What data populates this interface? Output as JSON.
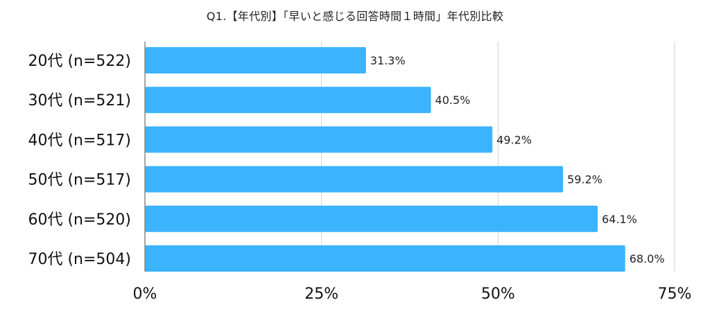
{
  "chart_data": {
    "type": "bar",
    "orientation": "horizontal",
    "title": "Q1.【年代別】「早いと感じる回答時間１時間」年代別比較",
    "categories": [
      "20代 (n=522)",
      "30代 (n=521)",
      "40代 (n=517)",
      "50代 (n=517)",
      "60代 (n=520)",
      "70代 (n=504)"
    ],
    "values": [
      31.3,
      40.5,
      49.2,
      59.2,
      64.1,
      68.0
    ],
    "data_labels": [
      "31.3%",
      "40.5%",
      "49.2%",
      "59.2%",
      "64.1%",
      "68.0%"
    ],
    "xlim": [
      0,
      75
    ],
    "xticks": [
      0,
      25,
      50,
      75
    ],
    "xtick_labels": [
      "0%",
      "25%",
      "50%",
      "75%"
    ],
    "xlabel": "",
    "ylabel": "",
    "grid": true,
    "bar_color": "#3BB3FF"
  }
}
